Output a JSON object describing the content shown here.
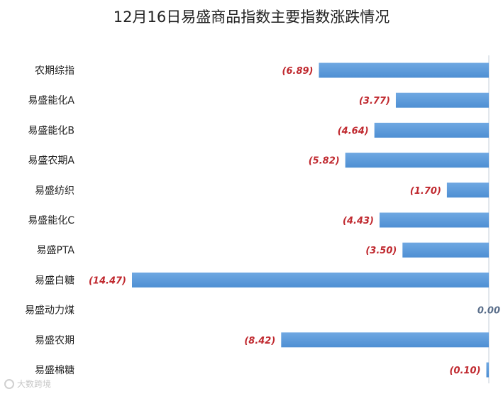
{
  "chart_data": {
    "type": "bar",
    "orientation": "horizontal",
    "title": "12月16日易盛商品指数主要指数涨跌情况",
    "categories": [
      "农期综指",
      "易盛能化A",
      "易盛能化B",
      "易盛农期A",
      "易盛纺织",
      "易盛能化C",
      "易盛PTA",
      "易盛白糖",
      "易盛动力煤",
      "易盛农期",
      "易盛棉糖"
    ],
    "values": [
      -6.89,
      -3.77,
      -4.64,
      -5.82,
      -1.7,
      -4.43,
      -3.5,
      -14.47,
      0.0,
      -8.42,
      -0.1
    ],
    "value_labels": [
      "(6.89)",
      "(3.77)",
      "(4.64)",
      "(5.82)",
      "(1.70)",
      "(4.43)",
      "(3.50)",
      "(14.47)",
      "0.00",
      "(8.42)",
      "(0.10)"
    ],
    "xlim": [
      -14.47,
      0
    ],
    "grid": false,
    "legend": "none",
    "colors": {
      "bar": "#4e8fd3",
      "bar_light": "#6fa8e2",
      "negative_label": "#c0292f",
      "zero_label": "#5a6e8a",
      "axis": "#c6cfd9"
    }
  },
  "watermark": {
    "text": "大数跨境"
  }
}
